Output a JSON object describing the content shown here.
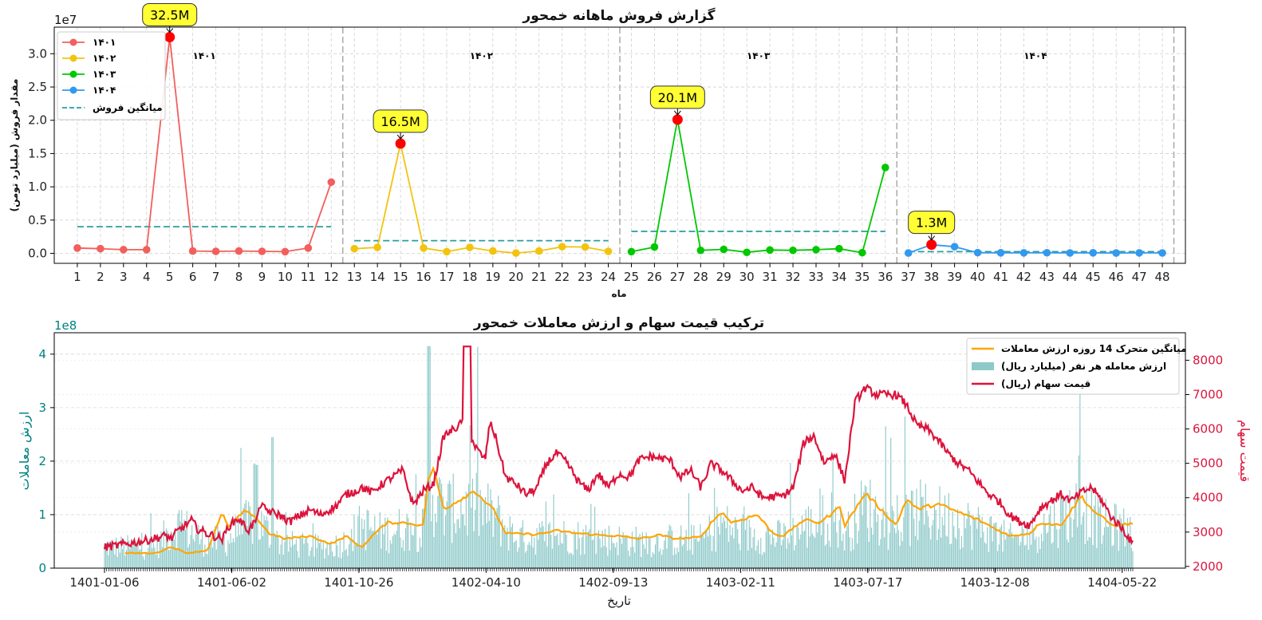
{
  "chart_data": [
    {
      "type": "line",
      "title": "گزارش فروش ماهانه خمحور",
      "xlabel": "ماه",
      "ylabel": "مقدار فروش (میلیارد تومن)",
      "y_offset_text": "1e7",
      "ylim": [
        -1500000,
        34000000
      ],
      "xlim": [
        0,
        49
      ],
      "yticks": [
        0,
        5000000,
        10000000,
        15000000,
        20000000,
        25000000,
        30000000
      ],
      "ytick_labels": [
        "0.0",
        "0.5",
        "1.0",
        "1.5",
        "2.0",
        "2.5",
        "3.0"
      ],
      "grid": true,
      "legend_position": "top-left",
      "average_label": "میانگین فروش",
      "average_color": "#2a9d9d",
      "year_labels": [
        "۱۴۰۱",
        "۱۴۰۲",
        "۱۴۰۳",
        "۱۴۰۴"
      ],
      "series": [
        {
          "name": "۱۴۰۱",
          "color": "#f25f5c",
          "x": [
            1,
            2,
            3,
            4,
            5,
            6,
            7,
            8,
            9,
            10,
            11,
            12
          ],
          "values": [
            800000,
            700000,
            550000,
            550000,
            32500000,
            350000,
            300000,
            350000,
            300000,
            250000,
            800000,
            10700000
          ],
          "average": 4000000
        },
        {
          "name": "۱۴۰۲",
          "color": "#f2c40f",
          "x": [
            13,
            14,
            15,
            16,
            17,
            18,
            19,
            20,
            21,
            22,
            23,
            24
          ],
          "values": [
            700000,
            900000,
            16500000,
            800000,
            250000,
            900000,
            350000,
            50000,
            350000,
            1000000,
            950000,
            300000
          ],
          "average": 1900000
        },
        {
          "name": "۱۴۰۳",
          "color": "#00c800",
          "x": [
            25,
            26,
            27,
            28,
            29,
            30,
            31,
            32,
            33,
            34,
            35,
            36
          ],
          "values": [
            250000,
            950000,
            20100000,
            450000,
            600000,
            150000,
            500000,
            450000,
            550000,
            700000,
            100000,
            12900000
          ],
          "average": 3300000
        },
        {
          "name": "۱۴۰۴",
          "color": "#3399ee",
          "x": [
            37,
            38,
            39,
            40,
            41,
            42,
            43,
            44,
            45,
            46,
            47,
            48
          ],
          "values": [
            50000,
            1300000,
            1000000,
            100000,
            80000,
            70000,
            90000,
            60000,
            80000,
            50000,
            70000,
            60000
          ],
          "average": 250000
        }
      ],
      "annotations": [
        {
          "x": 5,
          "y": 32500000,
          "text": "32.5M"
        },
        {
          "x": 15,
          "y": 16500000,
          "text": "16.5M"
        },
        {
          "x": 27,
          "y": 20100000,
          "text": "20.1M"
        },
        {
          "x": 38,
          "y": 1300000,
          "text": "1.3M"
        }
      ]
    },
    {
      "type": "bar",
      "title": "ترکیب قیمت سهام و ارزش معاملات خمحور",
      "xlabel": "تاریخ",
      "ylabel": "ارزش معاملات",
      "ylabel_right": "قیمت سهام",
      "y_offset_text": "1e8",
      "ylim": [
        0,
        440000000
      ],
      "ylim_right": [
        1950,
        8800
      ],
      "yticks": [
        0,
        100000000,
        200000000,
        300000000,
        400000000
      ],
      "ytick_labels": [
        "0",
        "1",
        "2",
        "3",
        "4"
      ],
      "yticks_right": [
        2000,
        3000,
        4000,
        5000,
        6000,
        7000,
        8000
      ],
      "left_axis_color": "#008080",
      "right_axis_color": "#dc143c",
      "xtick_labels": [
        "1401-01-06",
        "1401-06-02",
        "1401-10-26",
        "1402-04-10",
        "1402-09-13",
        "1403-02-11",
        "1403-07-17",
        "1403-12-08",
        "1404-05-22"
      ],
      "xtick_positions": [
        0,
        0.1237,
        0.2474,
        0.3711,
        0.4948,
        0.6186,
        0.7423,
        0.866,
        0.9897
      ],
      "grid": true,
      "legend_position": "top-right",
      "legend": [
        "میانگین متحرک 14 روزه ارزش معاملات",
        "ارزش معامله هر نفر (میلیارد ریال)",
        "قیمت سهام (ریال)"
      ],
      "bar_color": "#8ec9c9",
      "ma_color": "#ffa500",
      "price_color": "#dc143c",
      "samples": 800,
      "value_per_person_envelope": [
        [
          0.0,
          45000000
        ],
        [
          0.05,
          45000000
        ],
        [
          0.07,
          95000000
        ],
        [
          0.1,
          55000000
        ],
        [
          0.12,
          60000000
        ],
        [
          0.145,
          105000000
        ],
        [
          0.17,
          55000000
        ],
        [
          0.2,
          45000000
        ],
        [
          0.23,
          50000000
        ],
        [
          0.25,
          90000000
        ],
        [
          0.27,
          75000000
        ],
        [
          0.29,
          85000000
        ],
        [
          0.31,
          80000000
        ],
        [
          0.315,
          170000000
        ],
        [
          0.33,
          125000000
        ],
        [
          0.36,
          130000000
        ],
        [
          0.38,
          110000000
        ],
        [
          0.4,
          65000000
        ],
        [
          0.44,
          70000000
        ],
        [
          0.47,
          65000000
        ],
        [
          0.5,
          60000000
        ],
        [
          0.53,
          55000000
        ],
        [
          0.55,
          60000000
        ],
        [
          0.58,
          60000000
        ],
        [
          0.6,
          95000000
        ],
        [
          0.62,
          70000000
        ],
        [
          0.64,
          70000000
        ],
        [
          0.66,
          65000000
        ],
        [
          0.68,
          85000000
        ],
        [
          0.69,
          95000000
        ],
        [
          0.71,
          110000000
        ],
        [
          0.72,
          70000000
        ],
        [
          0.74,
          135000000
        ],
        [
          0.75,
          115000000
        ],
        [
          0.77,
          80000000
        ],
        [
          0.79,
          120000000
        ],
        [
          0.82,
          110000000
        ],
        [
          0.84,
          95000000
        ],
        [
          0.86,
          80000000
        ],
        [
          0.88,
          60000000
        ],
        [
          0.9,
          70000000
        ],
        [
          0.93,
          110000000
        ],
        [
          0.95,
          130000000
        ],
        [
          0.97,
          95000000
        ],
        [
          1.0,
          80000000
        ]
      ],
      "moving_average": [
        [
          0.02,
          28000000.0
        ],
        [
          0.05,
          28000000.0
        ],
        [
          0.065,
          40000000.0
        ],
        [
          0.08,
          28000000.0
        ],
        [
          0.1,
          33000000.0
        ],
        [
          0.115,
          105000000.0
        ],
        [
          0.12,
          75000000.0
        ],
        [
          0.135,
          105000000.0
        ],
        [
          0.145,
          100000000.0
        ],
        [
          0.16,
          65000000.0
        ],
        [
          0.175,
          55000000.0
        ],
        [
          0.2,
          60000000.0
        ],
        [
          0.22,
          45000000.0
        ],
        [
          0.235,
          60000000.0
        ],
        [
          0.25,
          38000000.0
        ],
        [
          0.26,
          60000000.0
        ],
        [
          0.275,
          85000000.0
        ],
        [
          0.29,
          85000000.0
        ],
        [
          0.31,
          80000000.0
        ],
        [
          0.315,
          170000000.0
        ],
        [
          0.32,
          185000000.0
        ],
        [
          0.33,
          110000000.0
        ],
        [
          0.36,
          145000000.0
        ],
        [
          0.38,
          105000000.0
        ],
        [
          0.39,
          65000000.0
        ],
        [
          0.42,
          63000000.0
        ],
        [
          0.44,
          70000000.0
        ],
        [
          0.46,
          65000000.0
        ],
        [
          0.48,
          62000000.0
        ],
        [
          0.5,
          60000000.0
        ],
        [
          0.52,
          55000000.0
        ],
        [
          0.54,
          62000000.0
        ],
        [
          0.555,
          55000000.0
        ],
        [
          0.58,
          58000000.0
        ],
        [
          0.59,
          85000000.0
        ],
        [
          0.6,
          105000000.0
        ],
        [
          0.61,
          85000000.0
        ],
        [
          0.635,
          100000000.0
        ],
        [
          0.65,
          65000000.0
        ],
        [
          0.66,
          60000000.0
        ],
        [
          0.68,
          90000000.0
        ],
        [
          0.695,
          85000000.0
        ],
        [
          0.71,
          105000000.0
        ],
        [
          0.715,
          118000000.0
        ],
        [
          0.72,
          80000000.0
        ],
        [
          0.74,
          140000000.0
        ],
        [
          0.75,
          120000000.0
        ],
        [
          0.77,
          80000000.0
        ],
        [
          0.78,
          130000000.0
        ],
        [
          0.79,
          110000000.0
        ],
        [
          0.81,
          120000000.0
        ],
        [
          0.83,
          105000000.0
        ],
        [
          0.85,
          90000000.0
        ],
        [
          0.86,
          80000000.0
        ],
        [
          0.88,
          60000000.0
        ],
        [
          0.9,
          65000000.0
        ],
        [
          0.91,
          85000000.0
        ],
        [
          0.93,
          80000000.0
        ],
        [
          0.95,
          135000000.0
        ],
        [
          0.96,
          110000000.0
        ],
        [
          0.98,
          80000000.0
        ],
        [
          1.0,
          83000000.0
        ]
      ],
      "price": [
        [
          0.0,
          2550
        ],
        [
          0.04,
          2750
        ],
        [
          0.06,
          2900
        ],
        [
          0.065,
          2800
        ],
        [
          0.07,
          3000
        ],
        [
          0.085,
          3350
        ],
        [
          0.09,
          3100
        ],
        [
          0.1,
          2950
        ],
        [
          0.115,
          2800
        ],
        [
          0.12,
          3150
        ],
        [
          0.13,
          3400
        ],
        [
          0.14,
          3050
        ],
        [
          0.15,
          3450
        ],
        [
          0.145,
          3900
        ],
        [
          0.155,
          3700
        ],
        [
          0.16,
          3600
        ],
        [
          0.17,
          3500
        ],
        [
          0.18,
          3300
        ],
        [
          0.2,
          3650
        ],
        [
          0.21,
          3500
        ],
        [
          0.225,
          3750
        ],
        [
          0.235,
          4100
        ],
        [
          0.245,
          4200
        ],
        [
          0.25,
          4300
        ],
        [
          0.26,
          4150
        ],
        [
          0.27,
          4400
        ],
        [
          0.29,
          4800
        ],
        [
          0.3,
          3800
        ],
        [
          0.31,
          4200
        ],
        [
          0.32,
          4400
        ],
        [
          0.33,
          5800
        ],
        [
          0.345,
          6100
        ],
        [
          0.35,
          6300
        ],
        [
          0.36,
          5500
        ],
        [
          0.37,
          5100
        ],
        [
          0.375,
          6200
        ],
        [
          0.38,
          5800
        ],
        [
          0.39,
          4600
        ],
        [
          0.4,
          4400
        ],
        [
          0.41,
          4100
        ],
        [
          0.42,
          4250
        ],
        [
          0.43,
          5000
        ],
        [
          0.44,
          5300
        ],
        [
          0.45,
          5000
        ],
        [
          0.46,
          4500
        ],
        [
          0.47,
          4200
        ],
        [
          0.48,
          4700
        ],
        [
          0.49,
          4300
        ],
        [
          0.5,
          4700
        ],
        [
          0.51,
          4600
        ],
        [
          0.52,
          5100
        ],
        [
          0.53,
          5200
        ],
        [
          0.55,
          5100
        ],
        [
          0.56,
          4600
        ],
        [
          0.57,
          4800
        ],
        [
          0.58,
          4300
        ],
        [
          0.59,
          5000
        ],
        [
          0.6,
          4800
        ],
        [
          0.61,
          4500
        ],
        [
          0.62,
          4200
        ],
        [
          0.63,
          4300
        ],
        [
          0.64,
          4000
        ],
        [
          0.66,
          4050
        ],
        [
          0.67,
          4300
        ],
        [
          0.68,
          5600
        ],
        [
          0.69,
          5800
        ],
        [
          0.7,
          5000
        ],
        [
          0.71,
          5300
        ],
        [
          0.72,
          4500
        ],
        [
          0.73,
          6800
        ],
        [
          0.74,
          7200
        ],
        [
          0.75,
          7000
        ],
        [
          0.77,
          7000
        ],
        [
          0.78,
          6700
        ],
        [
          0.79,
          6100
        ],
        [
          0.8,
          6000
        ],
        [
          0.81,
          5700
        ],
        [
          0.82,
          5300
        ],
        [
          0.83,
          5000
        ],
        [
          0.84,
          4800
        ],
        [
          0.86,
          4100
        ],
        [
          0.87,
          3900
        ],
        [
          0.88,
          3500
        ],
        [
          0.89,
          3300
        ],
        [
          0.9,
          3200
        ],
        [
          0.91,
          3700
        ],
        [
          0.92,
          3900
        ],
        [
          0.93,
          4100
        ],
        [
          0.94,
          3900
        ],
        [
          0.95,
          4150
        ],
        [
          0.96,
          4300
        ],
        [
          0.97,
          3900
        ],
        [
          0.98,
          3400
        ],
        [
          0.99,
          3100
        ],
        [
          1.0,
          2650
        ]
      ]
    }
  ]
}
